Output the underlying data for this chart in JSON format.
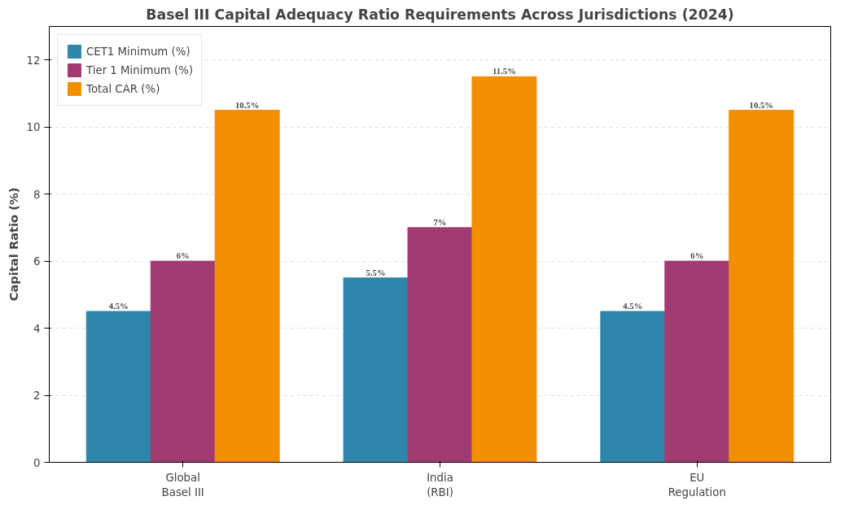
{
  "chart_data": {
    "type": "bar",
    "title": "Basel III Capital Adequacy Ratio Requirements Across Jurisdictions (2024)",
    "ylabel": "Capital Ratio (%)",
    "categories": [
      "Global\nBasel III",
      "India\n(RBI)",
      "EU\nRegulation"
    ],
    "series": [
      {
        "name": "CET1 Minimum (%)",
        "color": "#2e86ab",
        "values": [
          4.5,
          5.5,
          4.5
        ],
        "value_labels": [
          "4.5%",
          "5.5%",
          "4.5%"
        ]
      },
      {
        "name": "Tier 1 Minimum (%)",
        "color": "#a23b72",
        "values": [
          6,
          7,
          6
        ],
        "value_labels": [
          "6%",
          "7%",
          "6%"
        ]
      },
      {
        "name": "Total CAR (%)",
        "color": "#f18f01",
        "values": [
          10.5,
          11.5,
          10.5
        ],
        "value_labels": [
          "10.5%",
          "11.5%",
          "10.5%"
        ]
      }
    ],
    "ylim": [
      0,
      13
    ],
    "yticks": [
      0,
      2,
      4,
      6,
      8,
      10,
      12
    ],
    "grid": "y",
    "legend": "top left"
  }
}
